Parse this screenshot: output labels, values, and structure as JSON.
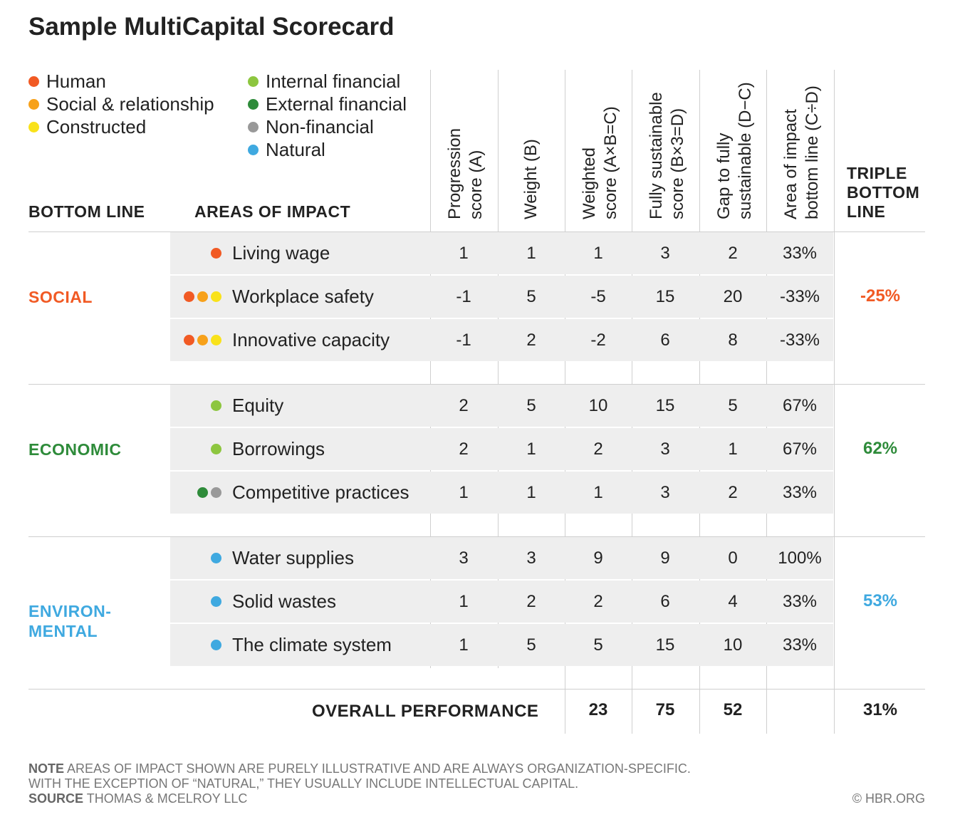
{
  "title": "Sample MultiCapital Scorecard",
  "legend": {
    "left": [
      {
        "label": "Human",
        "color": "#f15a24"
      },
      {
        "label": "Social & relationship",
        "color": "#f7a11a"
      },
      {
        "label": "Constructed",
        "color": "#f9e21a"
      }
    ],
    "right": [
      {
        "label": "Internal financial",
        "color": "#8dc63f"
      },
      {
        "label": "External financial",
        "color": "#2e8b3a"
      },
      {
        "label": "Non-financial",
        "color": "#999999"
      },
      {
        "label": "Natural",
        "color": "#3fa9e0"
      }
    ]
  },
  "headers": {
    "bottom_line": "BOTTOM LINE",
    "areas_of_impact": "AREAS OF IMPACT",
    "columns": [
      [
        "Progression",
        "score (A)"
      ],
      [
        "Weight (B)"
      ],
      [
        "Weighted",
        "score (A×B=C)"
      ],
      [
        "Fully sustainable",
        "score (B×3=D)"
      ],
      [
        "Gap to fully",
        "sustainable (D−C)"
      ],
      [
        "Area of impact",
        "bottom line (C÷D)"
      ]
    ],
    "triple_line1": "TRIPLE",
    "triple_line2": "BOTTOM",
    "triple_line3": "LINE"
  },
  "groups": [
    {
      "name_line1": "SOCIAL",
      "name_line2": "",
      "color": "#f15a24",
      "triple": "-25%",
      "rows": [
        {
          "dots": [
            "#f15a24"
          ],
          "area": "Living wage",
          "values": [
            "1",
            "1",
            "1",
            "3",
            "2",
            "33%"
          ]
        },
        {
          "dots": [
            "#f15a24",
            "#f7a11a",
            "#f9e21a"
          ],
          "area": "Workplace safety",
          "values": [
            "-1",
            "5",
            "-5",
            "15",
            "20",
            "-33%"
          ]
        },
        {
          "dots": [
            "#f15a24",
            "#f7a11a",
            "#f9e21a"
          ],
          "area": "Innovative capacity",
          "values": [
            "-1",
            "2",
            "-2",
            "6",
            "8",
            "-33%"
          ]
        }
      ]
    },
    {
      "name_line1": "ECONOMIC",
      "name_line2": "",
      "color": "#2e8b3a",
      "triple": "62%",
      "rows": [
        {
          "dots": [
            "#8dc63f"
          ],
          "area": "Equity",
          "values": [
            "2",
            "5",
            "10",
            "15",
            "5",
            "67%"
          ]
        },
        {
          "dots": [
            "#8dc63f"
          ],
          "area": "Borrowings",
          "values": [
            "2",
            "1",
            "2",
            "3",
            "1",
            "67%"
          ]
        },
        {
          "dots": [
            "#2e8b3a",
            "#999999"
          ],
          "area": "Competitive practices",
          "values": [
            "1",
            "1",
            "1",
            "3",
            "2",
            "33%"
          ]
        }
      ]
    },
    {
      "name_line1": "ENVIRON-",
      "name_line2": "MENTAL",
      "color": "#3fa9e0",
      "triple": "53%",
      "rows": [
        {
          "dots": [
            "#3fa9e0"
          ],
          "area": "Water supplies",
          "values": [
            "3",
            "3",
            "9",
            "9",
            "0",
            "100%"
          ]
        },
        {
          "dots": [
            "#3fa9e0"
          ],
          "area": "Solid wastes",
          "values": [
            "1",
            "2",
            "2",
            "6",
            "4",
            "33%"
          ]
        },
        {
          "dots": [
            "#3fa9e0"
          ],
          "area": "The climate system",
          "values": [
            "1",
            "5",
            "5",
            "15",
            "10",
            "33%"
          ]
        }
      ]
    }
  ],
  "overall": {
    "label": "OVERALL PERFORMANCE",
    "weighted": "23",
    "fully": "75",
    "gap": "52",
    "triple": "31%"
  },
  "note": {
    "note_label": "NOTE",
    "note_text": "AREAS OF IMPACT SHOWN ARE PURELY ILLUSTRATIVE AND ARE ALWAYS ORGANIZATION-SPECIFIC.",
    "note_text2": "WITH THE EXCEPTION OF “NATURAL,” THEY USUALLY INCLUDE INTELLECTUAL CAPITAL.",
    "source_label": "SOURCE",
    "source_text": "THOMAS & MCELROY LLC",
    "credit": "© HBR.ORG"
  }
}
